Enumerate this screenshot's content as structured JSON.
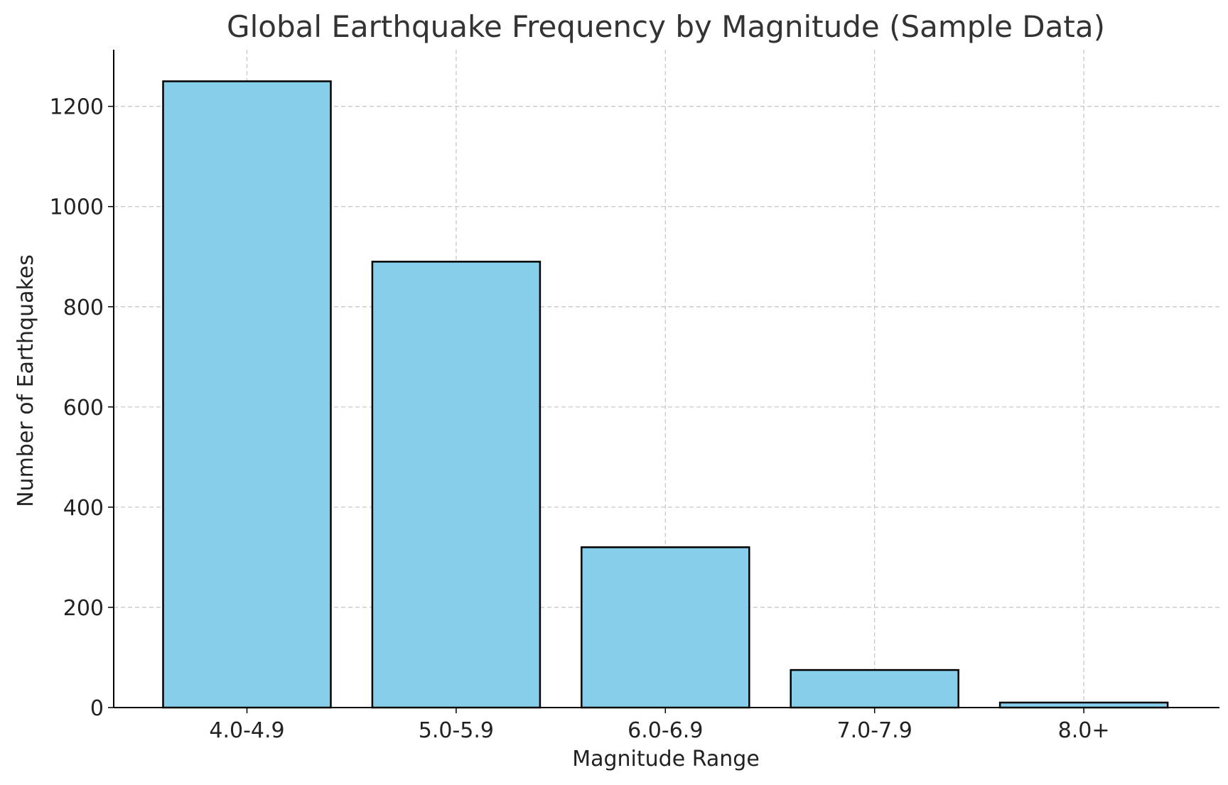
{
  "chart_data": {
    "type": "bar",
    "title": "Global Earthquake Frequency by Magnitude (Sample Data)",
    "xlabel": "Magnitude Range",
    "ylabel": "Number of Earthquakes",
    "categories": [
      "4.0-4.9",
      "5.0-5.9",
      "6.0-6.9",
      "7.0-7.9",
      "8.0+"
    ],
    "values": [
      1250,
      890,
      320,
      75,
      10
    ],
    "ylim": [
      0,
      1313
    ],
    "yticks": [
      0,
      200,
      400,
      600,
      800,
      1000,
      1200
    ],
    "grid": true,
    "bar_color": "#87CEEB",
    "edge_color": "#000000",
    "grid_color": "#c8c8c8",
    "text_color": "#333333"
  }
}
